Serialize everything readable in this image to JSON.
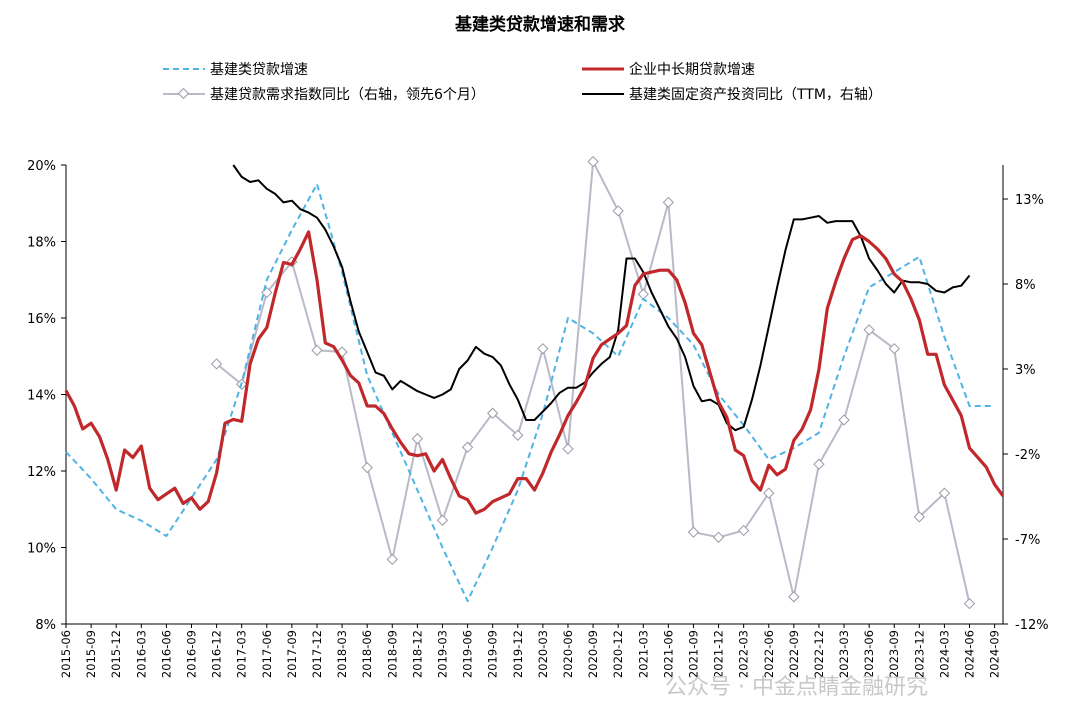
{
  "chart_data": {
    "type": "line",
    "title": "基建类贷款增速和需求",
    "x": [
      "2015-06",
      "2015-09",
      "2015-12",
      "2016-03",
      "2016-06",
      "2016-09",
      "2016-12",
      "2017-03",
      "2017-06",
      "2017-09",
      "2017-12",
      "2018-03",
      "2018-06",
      "2018-09",
      "2018-12",
      "2019-03",
      "2019-06",
      "2019-09",
      "2019-12",
      "2020-03",
      "2020-06",
      "2020-09",
      "2020-12",
      "2021-03",
      "2021-06",
      "2021-09",
      "2021-12",
      "2022-03",
      "2022-06",
      "2022-09",
      "2022-12",
      "2023-03",
      "2023-06",
      "2023-09",
      "2023-12",
      "2024-03",
      "2024-06",
      "2024-09"
    ],
    "y_left": {
      "min": 8,
      "max": 20,
      "ticks": [
        "8%",
        "10%",
        "12%",
        "14%",
        "16%",
        "18%",
        "20%"
      ],
      "tick_values": [
        8,
        10,
        12,
        14,
        16,
        18,
        20
      ]
    },
    "y_right": {
      "min": -12,
      "max": 15,
      "ticks": [
        "-12%",
        "-7%",
        "-2%",
        "3%",
        "8%",
        "13%"
      ],
      "tick_values": [
        -12,
        -7,
        -2,
        3,
        8,
        13
      ]
    },
    "series": [
      {
        "name": "基建类贷款增速",
        "axis": "left",
        "style": "dashed",
        "color": "#4fb3e6",
        "points": [
          [
            "2015-06",
            12.5
          ],
          [
            "2015-09",
            11.8
          ],
          [
            "2015-12",
            11.0
          ],
          [
            "2016-03",
            10.7
          ],
          [
            "2016-06",
            10.3
          ],
          [
            "2016-09",
            11.3
          ],
          [
            "2016-12",
            12.3
          ],
          [
            "2017-03",
            14.3
          ],
          [
            "2017-06",
            17.0
          ],
          [
            "2017-09",
            18.3
          ],
          [
            "2017-12",
            19.5
          ],
          [
            "2018-03",
            17.2
          ],
          [
            "2018-06",
            14.5
          ],
          [
            "2018-09",
            13.0
          ],
          [
            "2018-12",
            11.5
          ],
          [
            "2019-03",
            10.0
          ],
          [
            "2019-06",
            8.6
          ],
          [
            "2019-09",
            10.0
          ],
          [
            "2019-12",
            11.5
          ],
          [
            "2020-03",
            13.5
          ],
          [
            "2020-06",
            16.0
          ],
          [
            "2020-09",
            15.6
          ],
          [
            "2020-12",
            15.0
          ],
          [
            "2021-03",
            16.5
          ],
          [
            "2021-06",
            16.0
          ],
          [
            "2021-09",
            15.3
          ],
          [
            "2021-12",
            14.0
          ],
          [
            "2022-03",
            13.2
          ],
          [
            "2022-06",
            12.3
          ],
          [
            "2022-09",
            12.6
          ],
          [
            "2022-12",
            13.0
          ],
          [
            "2023-03",
            15.0
          ],
          [
            "2023-06",
            16.8
          ],
          [
            "2023-09",
            17.2
          ],
          [
            "2023-12",
            17.6
          ],
          [
            "2024-03",
            15.5
          ],
          [
            "2024-06",
            13.7
          ],
          [
            "2024-09",
            13.7
          ]
        ]
      },
      {
        "name": "企业中长期贷款增速",
        "axis": "left",
        "style": "solid",
        "color": "#c0282b",
        "points": [
          [
            "2015-06",
            14.1
          ],
          [
            "2015-07",
            13.7
          ],
          [
            "2015-08",
            13.1
          ],
          [
            "2015-09",
            13.25
          ],
          [
            "2015-10",
            12.9
          ],
          [
            "2015-11",
            12.3
          ],
          [
            "2015-12",
            11.5
          ],
          [
            "2016-01",
            12.55
          ],
          [
            "2016-02",
            12.35
          ],
          [
            "2016-03",
            12.65
          ],
          [
            "2016-04",
            11.55
          ],
          [
            "2016-05",
            11.25
          ],
          [
            "2016-06",
            11.4
          ],
          [
            "2016-07",
            11.55
          ],
          [
            "2016-08",
            11.15
          ],
          [
            "2016-09",
            11.3
          ],
          [
            "2016-10",
            11.0
          ],
          [
            "2016-11",
            11.2
          ],
          [
            "2016-12",
            11.95
          ],
          [
            "2017-01",
            13.25
          ],
          [
            "2017-02",
            13.35
          ],
          [
            "2017-03",
            13.3
          ],
          [
            "2017-04",
            14.8
          ],
          [
            "2017-05",
            15.45
          ],
          [
            "2017-06",
            15.75
          ],
          [
            "2017-07",
            16.65
          ],
          [
            "2017-08",
            17.45
          ],
          [
            "2017-09",
            17.4
          ],
          [
            "2017-10",
            17.8
          ],
          [
            "2017-11",
            18.25
          ],
          [
            "2017-12",
            17.0
          ],
          [
            "2018-01",
            15.35
          ],
          [
            "2018-02",
            15.25
          ],
          [
            "2018-03",
            14.9
          ],
          [
            "2018-04",
            14.5
          ],
          [
            "2018-05",
            14.3
          ],
          [
            "2018-06",
            13.7
          ],
          [
            "2018-07",
            13.7
          ],
          [
            "2018-08",
            13.5
          ],
          [
            "2018-09",
            13.1
          ],
          [
            "2018-10",
            12.75
          ],
          [
            "2018-11",
            12.45
          ],
          [
            "2018-12",
            12.4
          ],
          [
            "2019-01",
            12.45
          ],
          [
            "2019-02",
            12.0
          ],
          [
            "2019-03",
            12.3
          ],
          [
            "2019-04",
            11.8
          ],
          [
            "2019-05",
            11.35
          ],
          [
            "2019-06",
            11.25
          ],
          [
            "2019-07",
            10.9
          ],
          [
            "2019-08",
            11.0
          ],
          [
            "2019-09",
            11.2
          ],
          [
            "2019-10",
            11.3
          ],
          [
            "2019-11",
            11.4
          ],
          [
            "2019-12",
            11.8
          ],
          [
            "2020-01",
            11.8
          ],
          [
            "2020-02",
            11.5
          ],
          [
            "2020-03",
            11.95
          ],
          [
            "2020-04",
            12.5
          ],
          [
            "2020-05",
            12.95
          ],
          [
            "2020-06",
            13.45
          ],
          [
            "2020-07",
            13.8
          ],
          [
            "2020-08",
            14.2
          ],
          [
            "2020-09",
            14.95
          ],
          [
            "2020-10",
            15.3
          ],
          [
            "2020-11",
            15.45
          ],
          [
            "2020-12",
            15.6
          ],
          [
            "2021-01",
            15.8
          ],
          [
            "2021-02",
            16.85
          ],
          [
            "2021-03",
            17.15
          ],
          [
            "2021-04",
            17.2
          ],
          [
            "2021-05",
            17.25
          ],
          [
            "2021-06",
            17.25
          ],
          [
            "2021-07",
            17.0
          ],
          [
            "2021-08",
            16.4
          ],
          [
            "2021-09",
            15.6
          ],
          [
            "2021-10",
            15.3
          ],
          [
            "2021-11",
            14.55
          ],
          [
            "2021-12",
            13.8
          ],
          [
            "2022-01",
            13.4
          ],
          [
            "2022-02",
            12.55
          ],
          [
            "2022-03",
            12.4
          ],
          [
            "2022-04",
            11.75
          ],
          [
            "2022-05",
            11.5
          ],
          [
            "2022-06",
            12.15
          ],
          [
            "2022-07",
            11.9
          ],
          [
            "2022-08",
            12.05
          ],
          [
            "2022-09",
            12.8
          ],
          [
            "2022-10",
            13.1
          ],
          [
            "2022-11",
            13.6
          ],
          [
            "2022-12",
            14.65
          ],
          [
            "2023-01",
            16.25
          ],
          [
            "2023-02",
            16.95
          ],
          [
            "2023-03",
            17.55
          ],
          [
            "2023-04",
            18.05
          ],
          [
            "2023-05",
            18.15
          ],
          [
            "2023-06",
            18.0
          ],
          [
            "2023-07",
            17.8
          ],
          [
            "2023-08",
            17.55
          ],
          [
            "2023-09",
            17.15
          ],
          [
            "2023-10",
            16.95
          ],
          [
            "2023-11",
            16.5
          ],
          [
            "2023-12",
            15.95
          ],
          [
            "2024-01",
            15.05
          ],
          [
            "2024-02",
            15.05
          ],
          [
            "2024-03",
            14.25
          ],
          [
            "2024-04",
            13.85
          ],
          [
            "2024-05",
            13.45
          ],
          [
            "2024-06",
            12.6
          ],
          [
            "2024-07",
            12.35
          ],
          [
            "2024-08",
            12.1
          ],
          [
            "2024-09",
            11.65
          ],
          [
            "2024-10",
            11.35
          ]
        ]
      },
      {
        "name": "基建贷款需求指数同比（右轴，领先6个月）",
        "axis": "right",
        "style": "solid-diamond",
        "color": "#b9b9c8",
        "points": [
          [
            "2016-12",
            3.3
          ],
          [
            "2017-03",
            2.1
          ],
          [
            "2017-06",
            7.5
          ],
          [
            "2017-09",
            9.3
          ],
          [
            "2017-12",
            4.1
          ],
          [
            "2018-03",
            4.0
          ],
          [
            "2018-06",
            -2.8
          ],
          [
            "2018-09",
            -8.2
          ],
          [
            "2018-12",
            -1.1
          ],
          [
            "2019-03",
            -5.9
          ],
          [
            "2019-06",
            -1.6
          ],
          [
            "2019-09",
            0.4
          ],
          [
            "2019-12",
            -0.9
          ],
          [
            "2020-03",
            4.2
          ],
          [
            "2020-06",
            -1.7
          ],
          [
            "2020-09",
            15.2
          ],
          [
            "2020-12",
            12.3
          ],
          [
            "2021-03",
            7.4
          ],
          [
            "2021-06",
            12.8
          ],
          [
            "2021-09",
            -6.6
          ],
          [
            "2021-12",
            -6.9
          ],
          [
            "2022-03",
            -6.5
          ],
          [
            "2022-06",
            -4.3
          ],
          [
            "2022-09",
            -10.4
          ],
          [
            "2022-12",
            -2.6
          ],
          [
            "2023-03",
            0.0
          ],
          [
            "2023-06",
            5.3
          ],
          [
            "2023-09",
            4.2
          ],
          [
            "2023-12",
            -5.7
          ],
          [
            "2024-03",
            -4.3
          ],
          [
            "2024-06",
            -10.8
          ]
        ]
      },
      {
        "name": "基建类固定资产投资同比（TTM，右轴）",
        "axis": "right",
        "style": "solid",
        "color": "#000000",
        "points": [
          [
            "2017-02",
            15.0
          ],
          [
            "2017-03",
            14.3
          ],
          [
            "2017-04",
            14.0
          ],
          [
            "2017-05",
            14.1
          ],
          [
            "2017-06",
            13.6
          ],
          [
            "2017-07",
            13.3
          ],
          [
            "2017-08",
            12.8
          ],
          [
            "2017-09",
            12.9
          ],
          [
            "2017-10",
            12.4
          ],
          [
            "2017-11",
            12.2
          ],
          [
            "2017-12",
            11.9
          ],
          [
            "2018-01",
            11.2
          ],
          [
            "2018-02",
            10.2
          ],
          [
            "2018-03",
            9.0
          ],
          [
            "2018-04",
            7.0
          ],
          [
            "2018-05",
            5.2
          ],
          [
            "2018-06",
            4.0
          ],
          [
            "2018-07",
            2.8
          ],
          [
            "2018-08",
            2.6
          ],
          [
            "2018-09",
            1.8
          ],
          [
            "2018-10",
            2.3
          ],
          [
            "2018-11",
            2.0
          ],
          [
            "2018-12",
            1.7
          ],
          [
            "2019-01",
            1.5
          ],
          [
            "2019-02",
            1.3
          ],
          [
            "2019-03",
            1.5
          ],
          [
            "2019-04",
            1.8
          ],
          [
            "2019-05",
            3.0
          ],
          [
            "2019-06",
            3.5
          ],
          [
            "2019-07",
            4.3
          ],
          [
            "2019-08",
            3.9
          ],
          [
            "2019-09",
            3.7
          ],
          [
            "2019-10",
            3.2
          ],
          [
            "2019-11",
            2.1
          ],
          [
            "2019-12",
            1.2
          ],
          [
            "2020-01",
            0.0
          ],
          [
            "2020-02",
            0.0
          ],
          [
            "2020-03",
            0.5
          ],
          [
            "2020-04",
            1.0
          ],
          [
            "2020-05",
            1.6
          ],
          [
            "2020-06",
            1.9
          ],
          [
            "2020-07",
            1.9
          ],
          [
            "2020-08",
            2.2
          ],
          [
            "2020-09",
            2.8
          ],
          [
            "2020-10",
            3.3
          ],
          [
            "2020-11",
            3.7
          ],
          [
            "2020-12",
            5.3
          ],
          [
            "2021-01",
            9.5
          ],
          [
            "2021-02",
            9.5
          ],
          [
            "2021-03",
            8.7
          ],
          [
            "2021-04",
            7.5
          ],
          [
            "2021-05",
            6.5
          ],
          [
            "2021-06",
            5.5
          ],
          [
            "2021-07",
            4.8
          ],
          [
            "2021-08",
            3.7
          ],
          [
            "2021-09",
            2.0
          ],
          [
            "2021-10",
            1.1
          ],
          [
            "2021-11",
            1.2
          ],
          [
            "2021-12",
            0.9
          ],
          [
            "2022-01",
            -0.2
          ],
          [
            "2022-02",
            -0.6
          ],
          [
            "2022-03",
            -0.4
          ],
          [
            "2022-04",
            1.2
          ],
          [
            "2022-05",
            3.2
          ],
          [
            "2022-06",
            5.5
          ],
          [
            "2022-07",
            7.8
          ],
          [
            "2022-08",
            10.0
          ],
          [
            "2022-09",
            11.8
          ],
          [
            "2022-10",
            11.8
          ],
          [
            "2022-11",
            11.9
          ],
          [
            "2022-12",
            12.0
          ],
          [
            "2023-01",
            11.6
          ],
          [
            "2023-02",
            11.7
          ],
          [
            "2023-03",
            11.7
          ],
          [
            "2023-04",
            11.7
          ],
          [
            "2023-05",
            10.8
          ],
          [
            "2023-06",
            9.5
          ],
          [
            "2023-07",
            8.8
          ],
          [
            "2023-08",
            8.0
          ],
          [
            "2023-09",
            7.5
          ],
          [
            "2023-10",
            8.2
          ],
          [
            "2023-11",
            8.1
          ],
          [
            "2023-12",
            8.1
          ],
          [
            "2024-01",
            8.0
          ],
          [
            "2024-02",
            7.6
          ],
          [
            "2024-03",
            7.5
          ],
          [
            "2024-04",
            7.8
          ],
          [
            "2024-05",
            7.9
          ],
          [
            "2024-06",
            8.5
          ]
        ]
      }
    ],
    "legend_position": "top",
    "grid": false
  },
  "watermark": "公众号 · 中金点睛金融研究"
}
